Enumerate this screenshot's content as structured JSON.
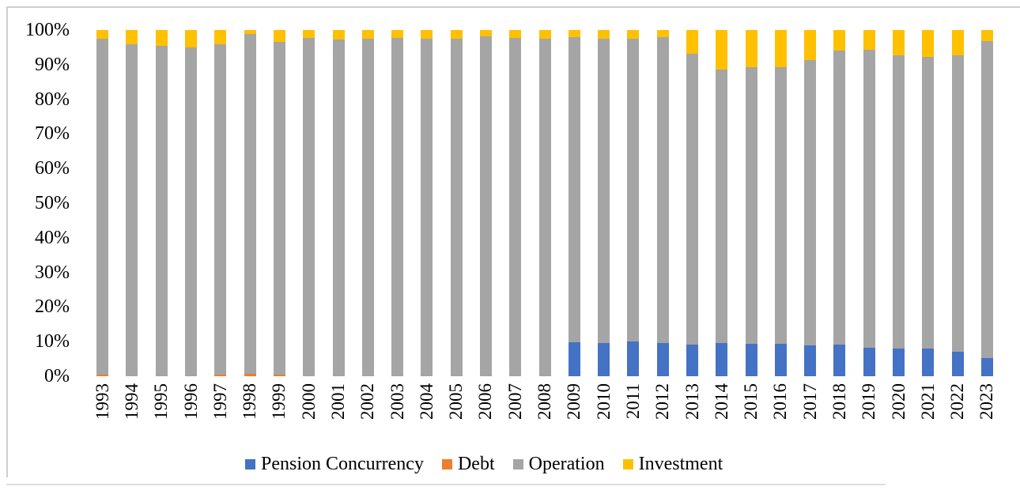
{
  "figure": {
    "background": "#ffffff",
    "frame_border_color": "#cfcfcf"
  },
  "chart_data": {
    "type": "bar",
    "stacked": true,
    "units": "percent",
    "title": "",
    "grid": false,
    "categories": [
      "1993",
      "1994",
      "1995",
      "1996",
      "1997",
      "1998",
      "1999",
      "2000",
      "2001",
      "2002",
      "2003",
      "2004",
      "2005",
      "2006",
      "2007",
      "2008",
      "2009",
      "2010",
      "2011",
      "2012",
      "2013",
      "2014",
      "2015",
      "2016",
      "2017",
      "2018",
      "2019",
      "2020",
      "2021",
      "2022",
      "2023"
    ],
    "series": [
      {
        "name": "Pension Concurrency",
        "color": "#4472C4",
        "values": [
          0,
          0,
          0,
          0,
          0,
          0,
          0,
          0,
          0,
          0,
          0,
          0,
          0,
          0,
          0,
          0,
          9.8,
          9.6,
          10,
          9.6,
          9.1,
          9.5,
          9.3,
          9.3,
          9,
          9.1,
          8.2,
          8,
          8,
          7.1,
          5.3
        ]
      },
      {
        "name": "Debt",
        "color": "#ED7D31",
        "values": [
          0.5,
          0,
          0,
          0,
          0.4,
          0.7,
          0.4,
          0,
          0,
          0,
          0,
          0,
          0,
          0,
          0,
          0,
          0,
          0,
          0,
          0,
          0,
          0,
          0,
          0,
          0,
          0,
          0,
          0,
          0,
          0,
          0
        ]
      },
      {
        "name": "Operation",
        "color": "#A5A5A5",
        "values": [
          97,
          96,
          95.5,
          95,
          95.6,
          98.2,
          96.1,
          97.7,
          97.3,
          97.5,
          97.7,
          97.6,
          97.6,
          98.1,
          97.7,
          97.6,
          88.2,
          88,
          87.6,
          88.4,
          84.1,
          79,
          79.9,
          79.9,
          82.3,
          85,
          86.1,
          84.7,
          84.3,
          85.6,
          91.5
        ]
      },
      {
        "name": "Investment",
        "color": "#FFC000",
        "values": [
          2.5,
          4,
          4.5,
          5,
          4,
          1.1,
          3.5,
          2.3,
          2.7,
          2.5,
          2.3,
          2.4,
          2.4,
          1.9,
          2.3,
          2.4,
          2,
          2.4,
          2.4,
          2,
          6.8,
          11.5,
          10.8,
          10.8,
          8.7,
          5.9,
          5.7,
          7.3,
          7.7,
          7.3,
          3.2
        ]
      }
    ],
    "y_axis": {
      "min": 0,
      "max": 100,
      "tick_labels": [
        "0%",
        "10%",
        "20%",
        "30%",
        "40%",
        "50%",
        "60%",
        "70%",
        "80%",
        "90%",
        "100%"
      ]
    },
    "x_axis": {
      "label_rotation_deg": 90
    },
    "legend": {
      "position": "bottom"
    }
  }
}
